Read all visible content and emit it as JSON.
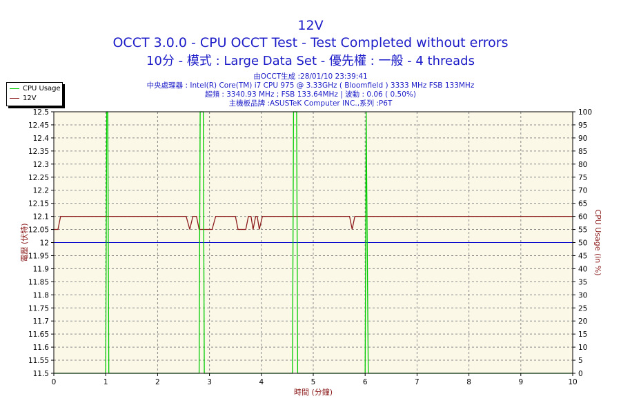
{
  "header": {
    "title": "12V",
    "subtitle": "OCCT 3.0.0 - CPU OCCT Test - Test Completed without errors",
    "subtitle2": "10分 - 模式 : Large Data Set - 優先權 : 一般 - 4 threads",
    "info": [
      "由OCCT生成 :28/01/10 23:39:41",
      "中央處理器 : Intel(R) Core(TM) i7 CPU 975 @ 3.33GHz ( Bloomfield ) 3333 MHz FSB 133MHz",
      "超頻 : 3340.93 MHz ; FSB 133.64MHz | 波動 : 0.06 ( 0.50%)",
      "主機板品牌 :ASUSTeK Computer INC.,系列 :P6T"
    ]
  },
  "legend": [
    {
      "label": "CPU Usage",
      "color": "#00cc00"
    },
    {
      "label": "12V",
      "color": "#8b1a1a"
    }
  ],
  "chart_data": {
    "type": "line",
    "xlabel": "時間 (分鐘)",
    "ylabel": "電壓 (伏特)",
    "y2label": "CPU Usage (in %)",
    "xlim": [
      0,
      10
    ],
    "ylim": [
      11.5,
      12.5
    ],
    "y2lim": [
      0,
      100
    ],
    "x_ticks": [
      "0",
      "1",
      "2",
      "3",
      "4",
      "5",
      "6",
      "7",
      "8",
      "9",
      "10"
    ],
    "y_ticks": [
      "11.5",
      "11.55",
      "11.6",
      "11.65",
      "11.7",
      "11.75",
      "11.8",
      "11.85",
      "11.9",
      "11.95",
      "12",
      "12.05",
      "12.1",
      "12.15",
      "12.2",
      "12.25",
      "12.3",
      "12.35",
      "12.4",
      "12.45",
      "12.5"
    ],
    "y2_ticks": [
      "0",
      "5",
      "10",
      "15",
      "20",
      "25",
      "30",
      "35",
      "40",
      "45",
      "50",
      "55",
      "60",
      "65",
      "70",
      "75",
      "80",
      "85",
      "90",
      "95",
      "100"
    ],
    "reference_line": {
      "y": 12.0,
      "color": "#0000cc"
    },
    "grid": true,
    "background": "#fbf8e8",
    "series": [
      {
        "name": "12V",
        "axis": "left",
        "color": "#8b1a1a",
        "points": [
          [
            0.0,
            12.05
          ],
          [
            0.08,
            12.05
          ],
          [
            0.13,
            12.1
          ],
          [
            2.55,
            12.1
          ],
          [
            2.62,
            12.05
          ],
          [
            2.68,
            12.1
          ],
          [
            2.75,
            12.1
          ],
          [
            2.8,
            12.05
          ],
          [
            3.05,
            12.05
          ],
          [
            3.12,
            12.1
          ],
          [
            3.5,
            12.1
          ],
          [
            3.55,
            12.05
          ],
          [
            3.7,
            12.05
          ],
          [
            3.75,
            12.1
          ],
          [
            3.8,
            12.1
          ],
          [
            3.84,
            12.05
          ],
          [
            3.89,
            12.1
          ],
          [
            3.92,
            12.1
          ],
          [
            3.96,
            12.05
          ],
          [
            4.02,
            12.1
          ],
          [
            5.7,
            12.1
          ],
          [
            5.75,
            12.05
          ],
          [
            5.8,
            12.1
          ],
          [
            10.0,
            12.1
          ]
        ]
      },
      {
        "name": "CPU Usage",
        "axis": "right",
        "color": "#00cc00",
        "points": [
          [
            0.0,
            0
          ],
          [
            1.0,
            0
          ],
          [
            1.02,
            100
          ],
          [
            1.04,
            100
          ],
          [
            1.06,
            0
          ],
          [
            2.8,
            0
          ],
          [
            2.82,
            100
          ],
          [
            2.88,
            100
          ],
          [
            2.9,
            0
          ],
          [
            4.6,
            0
          ],
          [
            4.62,
            100
          ],
          [
            4.68,
            100
          ],
          [
            4.7,
            0
          ],
          [
            6.0,
            0
          ],
          [
            6.02,
            100
          ],
          [
            6.06,
            0
          ],
          [
            10.0,
            0
          ]
        ]
      }
    ]
  }
}
